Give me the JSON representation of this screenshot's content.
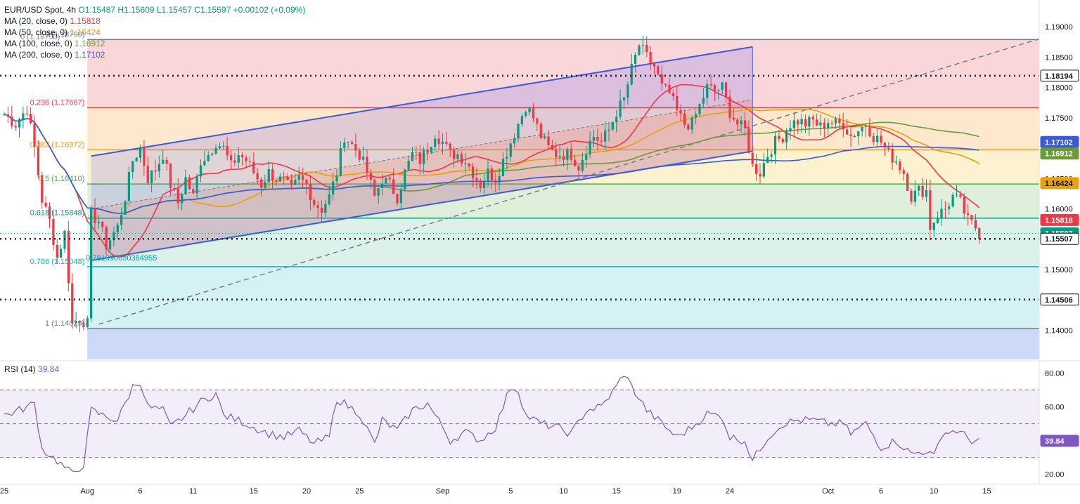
{
  "legend": {
    "symbol": "EUR/USD Spot, 4h",
    "ohlc": "O1.15487  H1.15609  L1.15457  C1.15597  +0.00102 (+0.09%)",
    "ma": [
      {
        "label": "MA (20, close, 0)",
        "value": "1.15818",
        "color": "#f23645"
      },
      {
        "label": "MA (50, close, 0)",
        "value": "1.16424",
        "color": "#e8a10a"
      },
      {
        "label": "MA (100, close, 0)",
        "value": "1.16912",
        "color": "#6b9a3a"
      },
      {
        "label": "MA (200, close, 0)",
        "value": "1.17102",
        "color": "#3a5ad8"
      }
    ],
    "faded": "0 (1.18790)"
  },
  "rsi": {
    "label": "RSI (14)",
    "value": "39.84"
  },
  "chart_data": {
    "type": "line",
    "title": "EUR/USD Spot, 4h",
    "ylim": [
      1.1352,
      1.1928
    ],
    "x_ticks": [
      {
        "label": "25",
        "i": 0
      },
      {
        "label": "Aug",
        "i": 22
      },
      {
        "label": "6",
        "i": 36
      },
      {
        "label": "11",
        "i": 50
      },
      {
        "label": "15",
        "i": 66
      },
      {
        "label": "20",
        "i": 80
      },
      {
        "label": "25",
        "i": 94
      },
      {
        "label": "Sep",
        "i": 116
      },
      {
        "label": "5",
        "i": 134
      },
      {
        "label": "10",
        "i": 148
      },
      {
        "label": "15",
        "i": 162
      },
      {
        "label": "19",
        "i": 178
      },
      {
        "label": "24",
        "i": 192
      },
      {
        "label": "Oct",
        "i": 218
      },
      {
        "label": "6",
        "i": 232
      },
      {
        "label": "10",
        "i": 246
      },
      {
        "label": "15",
        "i": 260
      }
    ],
    "y_ticks": [
      1.19,
      1.185,
      1.18,
      1.175,
      1.17,
      1.165,
      1.16,
      1.155,
      1.15,
      1.145,
      1.14
    ],
    "y_tick_labels": [
      "1.19000",
      "1.18500",
      "1.18000",
      "1.17500",
      "1.17000",
      "1.16500",
      "1.16000",
      "1.15500",
      "1.15000",
      "1.14500",
      "1.14000"
    ],
    "fib_levels": [
      {
        "label": "0 (1.18790)",
        "value": 1.1879
      },
      {
        "label": "0.236 (1.17667)",
        "value": 1.17667
      },
      {
        "label": "0.382 (1.16972)",
        "value": 1.16972
      },
      {
        "label": "0.5 (1.16410)",
        "value": 1.1641
      },
      {
        "label": "0.618 (1.15848)",
        "value": 1.15848
      },
      {
        "label": "0.786 (1.15048)",
        "value": 1.15048
      },
      {
        "label": "1 (1.14029)",
        "value": 1.14029
      }
    ],
    "fib_extra_label": "0.781990030384955",
    "horizontal_levels": [
      1.18194,
      1.15507,
      1.14506
    ],
    "price_badges": [
      {
        "label": "1.18194",
        "value": 1.18194,
        "bg": "#ffffff",
        "fg": "#131722"
      },
      {
        "label": "1.17102",
        "value": 1.17102,
        "bg": "#3a5ad8",
        "fg": "#ffffff"
      },
      {
        "label": "1.16912",
        "value": 1.16912,
        "bg": "#6b9a3a",
        "fg": "#ffffff"
      },
      {
        "label": "1.16424",
        "value": 1.16424,
        "bg": "#e8a10a",
        "fg": "#131722"
      },
      {
        "label": "1.15818",
        "value": 1.15818,
        "bg": "#f23645",
        "fg": "#ffffff"
      },
      {
        "label": "1.15597",
        "value": 1.15597,
        "bg": "#089981",
        "fg": "#ffffff"
      },
      {
        "label": "1.15507",
        "value": 1.15507,
        "bg": "#ffffff",
        "fg": "#131722"
      },
      {
        "label": "1.14506",
        "value": 1.14506,
        "bg": "#ffffff",
        "fg": "#131722"
      }
    ],
    "price_path": [
      [
        0,
        1.1756
      ],
      [
        3,
        1.174
      ],
      [
        6,
        1.1766
      ],
      [
        8,
        1.17
      ],
      [
        10,
        1.1615
      ],
      [
        12,
        1.158
      ],
      [
        14,
        1.152
      ],
      [
        16,
        1.156
      ],
      [
        18,
        1.141
      ],
      [
        20,
        1.142
      ],
      [
        22,
        1.141
      ],
      [
        23,
        1.159
      ],
      [
        25,
        1.158
      ],
      [
        27,
        1.154
      ],
      [
        30,
        1.157
      ],
      [
        32,
        1.162
      ],
      [
        34,
        1.168
      ],
      [
        36,
        1.17
      ],
      [
        38,
        1.165
      ],
      [
        40,
        1.1665
      ],
      [
        42,
        1.169
      ],
      [
        44,
        1.164
      ],
      [
        46,
        1.161
      ],
      [
        48,
        1.165
      ],
      [
        50,
        1.162
      ],
      [
        52,
        1.168
      ],
      [
        54,
        1.169
      ],
      [
        56,
        1.171
      ],
      [
        58,
        1.17
      ],
      [
        60,
        1.167
      ],
      [
        62,
        1.169
      ],
      [
        64,
        1.168
      ],
      [
        66,
        1.166
      ],
      [
        68,
        1.164
      ],
      [
        70,
        1.166
      ],
      [
        72,
        1.165
      ],
      [
        74,
        1.1645
      ],
      [
        76,
        1.163
      ],
      [
        78,
        1.165
      ],
      [
        80,
        1.164
      ],
      [
        82,
        1.161
      ],
      [
        84,
        1.16
      ],
      [
        86,
        1.162
      ],
      [
        88,
        1.166
      ],
      [
        90,
        1.172
      ],
      [
        92,
        1.1705
      ],
      [
        94,
        1.169
      ],
      [
        96,
        1.166
      ],
      [
        98,
        1.162
      ],
      [
        100,
        1.165
      ],
      [
        102,
        1.164
      ],
      [
        104,
        1.162
      ],
      [
        106,
        1.166
      ],
      [
        108,
        1.169
      ],
      [
        110,
        1.168
      ],
      [
        112,
        1.17
      ],
      [
        114,
        1.1725
      ],
      [
        116,
        1.171
      ],
      [
        118,
        1.169
      ],
      [
        120,
        1.169
      ],
      [
        122,
        1.168
      ],
      [
        124,
        1.166
      ],
      [
        126,
        1.164
      ],
      [
        128,
        1.166
      ],
      [
        130,
        1.165
      ],
      [
        132,
        1.168
      ],
      [
        134,
        1.171
      ],
      [
        136,
        1.174
      ],
      [
        138,
        1.177
      ],
      [
        140,
        1.175
      ],
      [
        142,
        1.172
      ],
      [
        144,
        1.17
      ],
      [
        146,
        1.169
      ],
      [
        148,
        1.169
      ],
      [
        150,
        1.169
      ],
      [
        152,
        1.167
      ],
      [
        154,
        1.17
      ],
      [
        156,
        1.172
      ],
      [
        158,
        1.171
      ],
      [
        160,
        1.173
      ],
      [
        162,
        1.176
      ],
      [
        164,
        1.178
      ],
      [
        166,
        1.183
      ],
      [
        168,
        1.187
      ],
      [
        170,
        1.185
      ],
      [
        172,
        1.1835
      ],
      [
        174,
        1.18
      ],
      [
        176,
        1.179
      ],
      [
        178,
        1.176
      ],
      [
        180,
        1.174
      ],
      [
        182,
        1.174
      ],
      [
        184,
        1.177
      ],
      [
        186,
        1.18
      ],
      [
        188,
        1.1795
      ],
      [
        190,
        1.18
      ],
      [
        192,
        1.176
      ],
      [
        194,
        1.174
      ],
      [
        196,
        1.173
      ],
      [
        198,
        1.167
      ],
      [
        200,
        1.166
      ],
      [
        202,
        1.169
      ],
      [
        204,
        1.171
      ],
      [
        206,
        1.172
      ],
      [
        208,
        1.174
      ],
      [
        210,
        1.1745
      ],
      [
        212,
        1.174
      ],
      [
        214,
        1.1745
      ],
      [
        216,
        1.1735
      ],
      [
        218,
        1.1745
      ],
      [
        220,
        1.174
      ],
      [
        222,
        1.174
      ],
      [
        224,
        1.172
      ],
      [
        226,
        1.173
      ],
      [
        228,
        1.174
      ],
      [
        230,
        1.172
      ],
      [
        232,
        1.171
      ],
      [
        234,
        1.169
      ],
      [
        236,
        1.168
      ],
      [
        238,
        1.166
      ],
      [
        240,
        1.162
      ],
      [
        242,
        1.163
      ],
      [
        244,
        1.163
      ],
      [
        245,
        1.157
      ],
      [
        247,
        1.159
      ],
      [
        249,
        1.16
      ],
      [
        251,
        1.162
      ],
      [
        253,
        1.161
      ],
      [
        255,
        1.158
      ],
      [
        257,
        1.157
      ],
      [
        258,
        1.156
      ]
    ],
    "rsi_ylim": [
      14,
      84
    ],
    "rsi_ticks": [
      80,
      60,
      20
    ],
    "rsi_tick_labels": [
      "80.00",
      "60.00",
      "20.00"
    ],
    "rsi_bands": [
      70,
      50,
      30
    ],
    "rsi_path": [
      [
        0,
        55
      ],
      [
        4,
        58
      ],
      [
        8,
        62
      ],
      [
        10,
        35
      ],
      [
        14,
        28
      ],
      [
        18,
        20
      ],
      [
        21,
        26
      ],
      [
        23,
        58
      ],
      [
        26,
        55
      ],
      [
        30,
        52
      ],
      [
        34,
        72
      ],
      [
        36,
        75
      ],
      [
        38,
        60
      ],
      [
        42,
        58
      ],
      [
        44,
        48
      ],
      [
        48,
        55
      ],
      [
        52,
        63
      ],
      [
        56,
        68
      ],
      [
        58,
        55
      ],
      [
        62,
        52
      ],
      [
        66,
        48
      ],
      [
        70,
        44
      ],
      [
        74,
        42
      ],
      [
        78,
        46
      ],
      [
        82,
        38
      ],
      [
        86,
        42
      ],
      [
        88,
        65
      ],
      [
        90,
        62
      ],
      [
        94,
        56
      ],
      [
        98,
        38
      ],
      [
        100,
        52
      ],
      [
        104,
        46
      ],
      [
        108,
        58
      ],
      [
        112,
        62
      ],
      [
        116,
        48
      ],
      [
        118,
        40
      ],
      [
        122,
        45
      ],
      [
        126,
        40
      ],
      [
        130,
        48
      ],
      [
        134,
        72
      ],
      [
        136,
        70
      ],
      [
        138,
        55
      ],
      [
        142,
        50
      ],
      [
        146,
        48
      ],
      [
        150,
        44
      ],
      [
        154,
        58
      ],
      [
        158,
        60
      ],
      [
        162,
        72
      ],
      [
        164,
        80
      ],
      [
        166,
        72
      ],
      [
        170,
        58
      ],
      [
        174,
        50
      ],
      [
        178,
        42
      ],
      [
        182,
        48
      ],
      [
        186,
        56
      ],
      [
        190,
        54
      ],
      [
        192,
        42
      ],
      [
        196,
        40
      ],
      [
        198,
        28
      ],
      [
        202,
        42
      ],
      [
        206,
        50
      ],
      [
        210,
        52
      ],
      [
        214,
        52
      ],
      [
        218,
        50
      ],
      [
        222,
        50
      ],
      [
        224,
        44
      ],
      [
        228,
        50
      ],
      [
        232,
        36
      ],
      [
        236,
        40
      ],
      [
        240,
        32
      ],
      [
        244,
        34
      ],
      [
        246,
        30
      ],
      [
        248,
        44
      ],
      [
        252,
        46
      ],
      [
        256,
        40
      ],
      [
        258,
        40
      ]
    ]
  },
  "colors": {
    "up": "#089981",
    "down": "#f23645",
    "ma20": "#f23645",
    "ma50": "#e8a10a",
    "ma100": "#6b9a3a",
    "ma200": "#3a5ad8",
    "channel": "#3f5bd8",
    "rsi": "#7e57c2"
  }
}
